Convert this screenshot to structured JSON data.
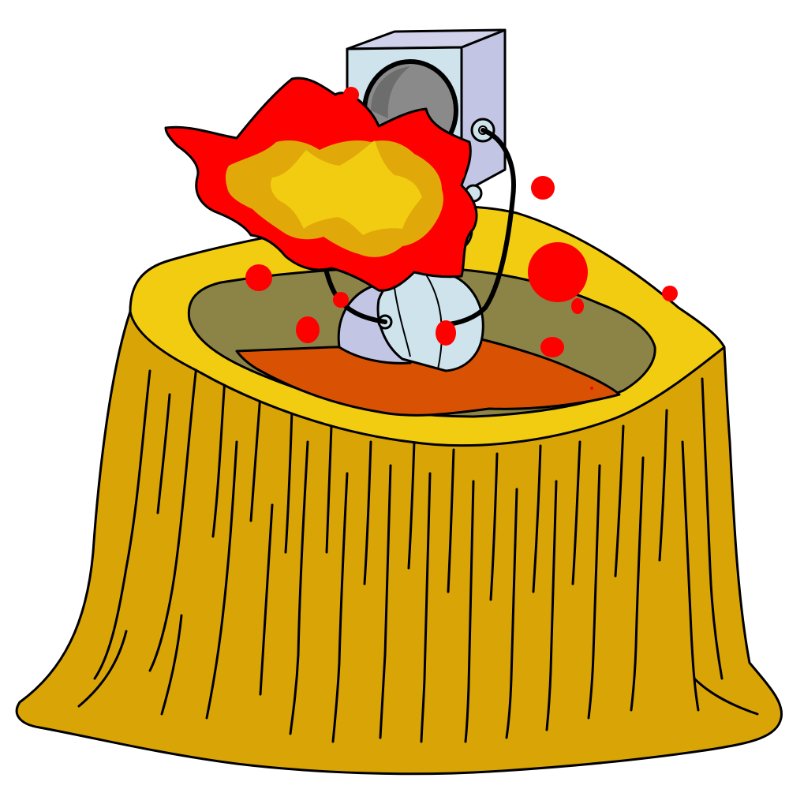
{
  "illustration": {
    "subject": "stump-explosion",
    "colors": {
      "background": "#ffffff",
      "outline": "#000000",
      "bark": "#d9a406",
      "stump_top_rim": "#f2cc10",
      "stump_inner_wall": "#8c8446",
      "stump_core": "#d95204",
      "explosion_outer": "#ff0000",
      "explosion_mid": "#e0a808",
      "explosion_inner": "#f2cc10",
      "detonator_face": "#cfe3ec",
      "detonator_side": "#c3c5e4",
      "detonator_inner": "#8a8a8a",
      "charge_body": "#cfe3ec",
      "charge_shadow": "#c3c5e4",
      "blood_spots": "#ff0000"
    },
    "icons": [
      "tree-stump-icon",
      "explosion-icon",
      "detonator-box-icon",
      "explosive-charge-icon",
      "wire-icon"
    ]
  }
}
